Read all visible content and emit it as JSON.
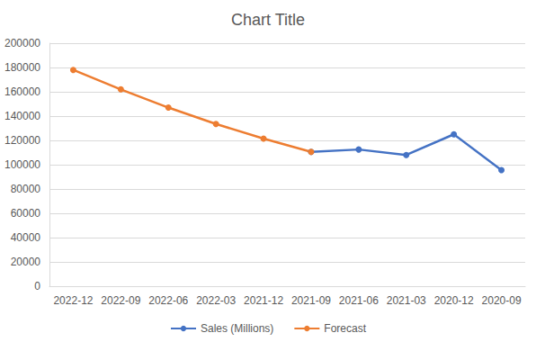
{
  "chart_data": {
    "type": "line",
    "title": "Chart Title",
    "categories": [
      "2022-12",
      "2022-09",
      "2022-06",
      "2022-03",
      "2021-12",
      "2021-09",
      "2021-06",
      "2021-03",
      "2020-12",
      "2020-09"
    ],
    "series": [
      {
        "name": "Sales (Millions)",
        "color": "#4472c4",
        "marker": "circle",
        "values": [
          null,
          null,
          null,
          null,
          null,
          110500,
          112500,
          108000,
          125000,
          95500
        ]
      },
      {
        "name": "Forecast",
        "color": "#ed7d31",
        "marker": "circle",
        "values": [
          178000,
          162000,
          147000,
          133500,
          121500,
          110500,
          null,
          null,
          null,
          null
        ]
      }
    ],
    "ylim": [
      0,
      200000
    ],
    "yticks": [
      0,
      20000,
      40000,
      60000,
      80000,
      100000,
      120000,
      140000,
      160000,
      180000,
      200000
    ],
    "grid": true,
    "legend": "bottom"
  }
}
